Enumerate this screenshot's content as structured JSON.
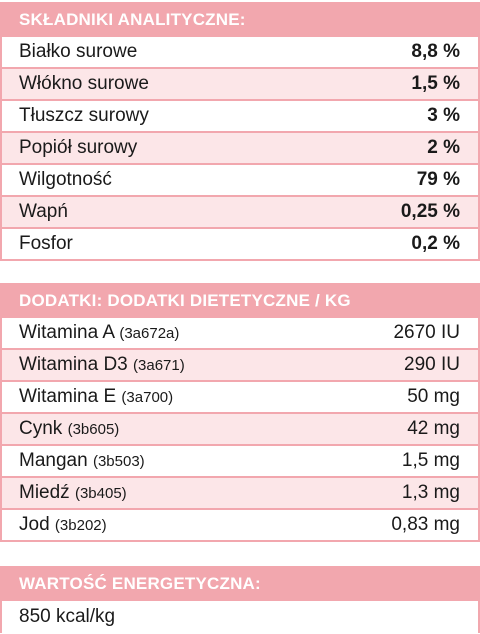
{
  "analytical": {
    "title": "SKŁADNIKI ANALITYCZNE:",
    "rows": [
      {
        "name": "Białko surowe",
        "value": "8,8 %"
      },
      {
        "name": "Włókno surowe",
        "value": "1,5 %"
      },
      {
        "name": "Tłuszcz surowy",
        "value": "3 %"
      },
      {
        "name": "Popiół surowy",
        "value": "2 %"
      },
      {
        "name": "Wilgotność",
        "value": "79 %"
      },
      {
        "name": "Wapń",
        "value": "0,25 %"
      },
      {
        "name": "Fosfor",
        "value": "0,2 %"
      }
    ]
  },
  "additives": {
    "title": "DODATKI: DODATKI DIETETYCZNE / KG",
    "rows": [
      {
        "name": "Witamina A",
        "code": "(3a672a)",
        "value": "2670 IU"
      },
      {
        "name": "Witamina D3",
        "code": "(3a671)",
        "value": "290 IU"
      },
      {
        "name": "Witamina E",
        "code": "(3a700)",
        "value": "50 mg"
      },
      {
        "name": "Cynk",
        "code": "(3b605)",
        "value": "42 mg"
      },
      {
        "name": "Mangan",
        "code": "(3b503)",
        "value": "1,5 mg"
      },
      {
        "name": "Miedź",
        "code": "(3b405)",
        "value": "1,3 mg"
      },
      {
        "name": "Jod",
        "code": "(3b202)",
        "value": "0,83 mg"
      }
    ]
  },
  "energy": {
    "title": "WARTOŚĆ ENERGETYCZNA:",
    "value": "850 kcal/kg"
  }
}
